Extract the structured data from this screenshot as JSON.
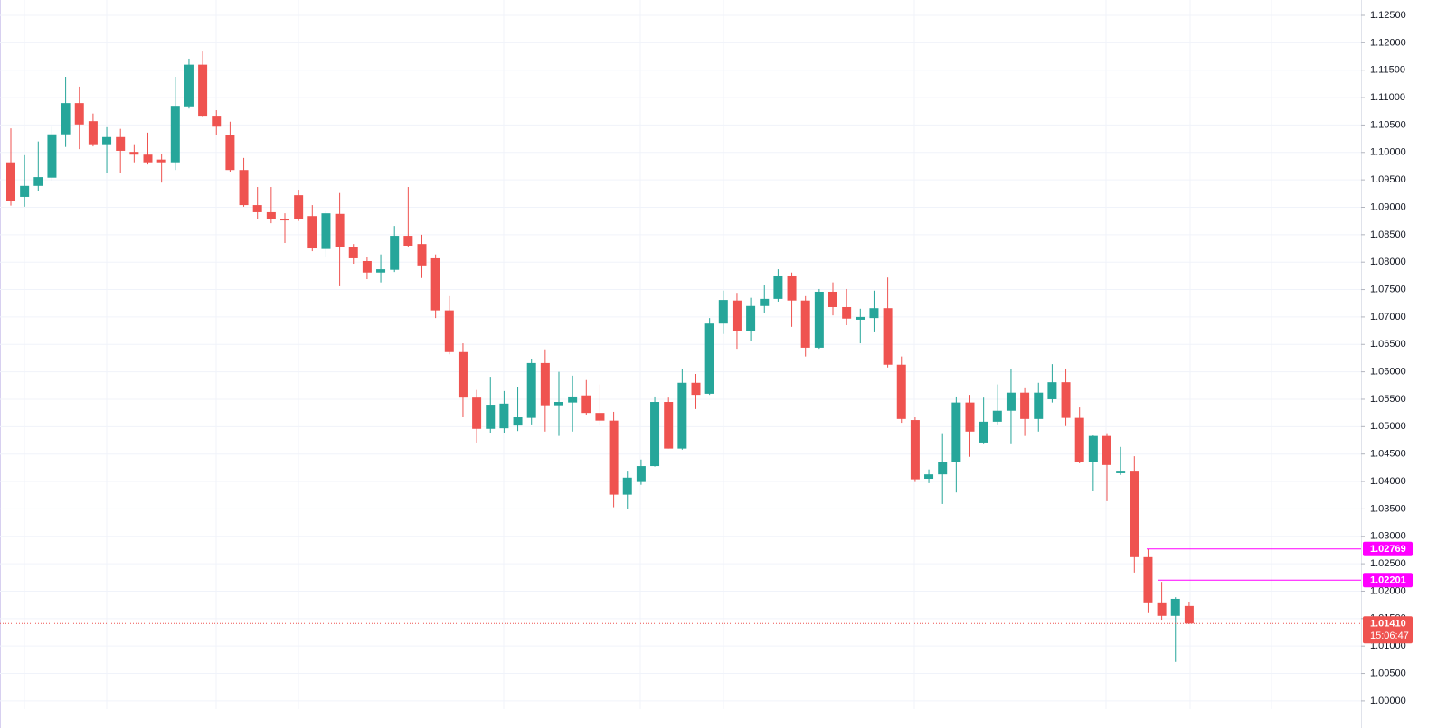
{
  "chart_data": {
    "type": "candlestick",
    "up_color": "#26a69a",
    "down_color": "#ef5350",
    "ylim": [
      0.9985,
      1.1278
    ],
    "yticks": [
      {
        "value": 1.0,
        "label": "1.00000"
      },
      {
        "value": 1.005,
        "label": "1.00500"
      },
      {
        "value": 1.01,
        "label": "1.01000"
      },
      {
        "value": 1.015,
        "label": "1.01500"
      },
      {
        "value": 1.02,
        "label": "1.02000"
      },
      {
        "value": 1.025,
        "label": "1.02500"
      },
      {
        "value": 1.03,
        "label": "1.03000"
      },
      {
        "value": 1.035,
        "label": "1.03500"
      },
      {
        "value": 1.04,
        "label": "1.04000"
      },
      {
        "value": 1.045,
        "label": "1.04500"
      },
      {
        "value": 1.05,
        "label": "1.05000"
      },
      {
        "value": 1.055,
        "label": "1.05500"
      },
      {
        "value": 1.06,
        "label": "1.06000"
      },
      {
        "value": 1.065,
        "label": "1.06500"
      },
      {
        "value": 1.07,
        "label": "1.07000"
      },
      {
        "value": 1.075,
        "label": "1.07500"
      },
      {
        "value": 1.08,
        "label": "1.08000"
      },
      {
        "value": 1.085,
        "label": "1.08500"
      },
      {
        "value": 1.09,
        "label": "1.09000"
      },
      {
        "value": 1.095,
        "label": "1.09500"
      },
      {
        "value": 1.1,
        "label": "1.10000"
      },
      {
        "value": 1.105,
        "label": "1.10500"
      },
      {
        "value": 1.11,
        "label": "1.11000"
      },
      {
        "value": 1.115,
        "label": "1.11500"
      },
      {
        "value": 1.12,
        "label": "1.12000"
      },
      {
        "value": 1.125,
        "label": "1.12500"
      }
    ],
    "grid": true,
    "open": [
      1.0982,
      1.0919,
      1.0939,
      1.0954,
      1.1033,
      1.109,
      1.1057,
      1.1015,
      1.1028,
      1.1001,
      1.0996,
      1.0987,
      1.0982,
      1.1084,
      1.116,
      1.1067,
      1.1031,
      1.0968,
      1.0904,
      1.0891,
      1.0878,
      1.0922,
      1.0884,
      1.0824,
      1.0888,
      1.0828,
      1.0802,
      1.0781,
      1.0786,
      1.0848,
      1.0833,
      1.0807,
      1.0712,
      1.0636,
      1.0553,
      1.0496,
      1.0497,
      1.0502,
      1.0516,
      1.0616,
      1.0539,
      1.0544,
      1.0557,
      1.0525,
      1.0511,
      1.0376,
      1.0399,
      1.0428,
      1.0545,
      1.046,
      1.058,
      1.056,
      1.0688,
      1.073,
      1.0675,
      1.072,
      1.0733,
      1.0774,
      1.073,
      1.0644,
      1.0746,
      1.0718,
      1.0695,
      1.0698,
      1.0716,
      1.0613,
      1.0512,
      1.0405,
      1.0413,
      1.0436,
      1.0544,
      1.0471,
      1.0509,
      1.0529,
      1.0562,
      1.0514,
      1.055,
      1.0581,
      1.0516,
      1.0435,
      1.0483,
      1.0415,
      1.0418,
      1.0262,
      1.0178,
      1.0155,
      1.0173
    ],
    "high": [
      1.1044,
      1.0995,
      1.102,
      1.1047,
      1.1138,
      1.112,
      1.1071,
      1.1046,
      1.1043,
      1.1015,
      1.1036,
      1.0998,
      1.1138,
      1.1171,
      1.1184,
      1.1077,
      1.1056,
      1.099,
      1.0937,
      1.0937,
      1.0889,
      1.0932,
      1.0904,
      1.0893,
      1.0926,
      1.0833,
      1.081,
      1.0814,
      1.0866,
      1.0937,
      1.085,
      1.0814,
      1.0738,
      1.0652,
      1.0567,
      1.0591,
      1.0565,
      1.0573,
      1.0623,
      1.0641,
      1.06,
      1.0593,
      1.0585,
      1.0577,
      1.0527,
      1.0418,
      1.044,
      1.0555,
      1.0553,
      1.0606,
      1.0596,
      1.0698,
      1.0748,
      1.0744,
      1.0735,
      1.0759,
      1.0787,
      1.0781,
      1.0738,
      1.0751,
      1.0763,
      1.0751,
      1.0715,
      1.0748,
      1.0772,
      1.0628,
      1.0517,
      1.0422,
      1.0488,
      1.0555,
      1.0558,
      1.0553,
      1.0577,
      1.0606,
      1.057,
      1.058,
      1.0614,
      1.0606,
      1.0535,
      1.0484,
      1.0488,
      1.0463,
      1.0446,
      1.0277,
      1.0217,
      1.0189,
      1.018
    ],
    "low": [
      1.0903,
      1.0901,
      1.0929,
      1.0949,
      1.101,
      1.1006,
      1.1011,
      1.0962,
      1.0962,
      1.0982,
      1.0978,
      1.0945,
      1.0968,
      1.108,
      1.1064,
      1.1031,
      1.0965,
      1.0901,
      1.0878,
      1.0871,
      1.0835,
      1.0875,
      1.082,
      1.081,
      1.0756,
      1.0797,
      1.0769,
      1.0763,
      1.0782,
      1.0827,
      1.0771,
      1.0698,
      1.0632,
      1.0517,
      1.0471,
      1.0489,
      1.0489,
      1.0492,
      1.0504,
      1.0491,
      1.0483,
      1.0491,
      1.0522,
      1.0504,
      1.0353,
      1.0349,
      1.0394,
      1.0427,
      1.046,
      1.0458,
      1.0532,
      1.0558,
      1.0669,
      1.0642,
      1.0657,
      1.0707,
      1.0728,
      1.0682,
      1.0628,
      1.0642,
      1.0703,
      1.0685,
      1.0652,
      1.0672,
      1.0608,
      1.0507,
      1.0399,
      1.0397,
      1.0359,
      1.038,
      1.0445,
      1.0468,
      1.0504,
      1.0468,
      1.0483,
      1.0491,
      1.0544,
      1.0501,
      1.0433,
      1.0382,
      1.0364,
      1.0412,
      1.0234,
      1.016,
      1.0148,
      1.0071,
      1.014
    ],
    "close": [
      1.0912,
      1.0939,
      1.0955,
      1.1033,
      1.109,
      1.1051,
      1.1015,
      1.1028,
      1.1003,
      1.0996,
      1.0982,
      1.0982,
      1.1085,
      1.116,
      1.1067,
      1.1047,
      1.0968,
      1.0904,
      1.0891,
      1.0878,
      1.0876,
      1.0878,
      1.0825,
      1.0889,
      1.0828,
      1.0807,
      1.0781,
      1.0787,
      1.0848,
      1.083,
      1.0794,
      1.0712,
      1.0636,
      1.0553,
      1.0496,
      1.054,
      1.0542,
      1.0517,
      1.0616,
      1.0539,
      1.0545,
      1.0555,
      1.0525,
      1.0511,
      1.0376,
      1.0407,
      1.0428,
      1.0545,
      1.046,
      1.058,
      1.0558,
      1.0688,
      1.0731,
      1.0675,
      1.072,
      1.0733,
      1.0774,
      1.073,
      1.0644,
      1.0746,
      1.0718,
      1.0697,
      1.07,
      1.0716,
      1.0613,
      1.0514,
      1.0404,
      1.0413,
      1.0436,
      1.0544,
      1.0491,
      1.0509,
      1.0529,
      1.0562,
      1.0514,
      1.0562,
      1.0581,
      1.0516,
      1.0436,
      1.0483,
      1.043,
      1.0418,
      1.0262,
      1.0178,
      1.0155,
      1.0186,
      1.0141
    ],
    "price_lines": [
      {
        "value": 1.02769,
        "color": "#ff00ff"
      },
      {
        "value": 1.02201,
        "color": "#ff00ff"
      }
    ],
    "last_price": {
      "value": 1.0141,
      "label": "1.01410",
      "countdown": "15:06:47",
      "color": "#ef5350"
    }
  }
}
